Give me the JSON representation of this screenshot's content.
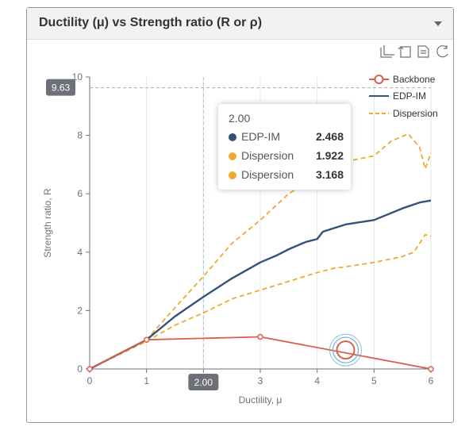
{
  "panel": {
    "title": "Ductility (μ) vs Strength ratio (R or ρ)"
  },
  "toolbox": [
    "crop-icon",
    "undo-icon",
    "data-view-icon",
    "restore-icon"
  ],
  "colors": {
    "backbone": "#d9604a",
    "edp_im": "#34527a",
    "dispersion": "#f0a830"
  },
  "pointer": {
    "x_label": "2.00",
    "y_label": "9.63"
  },
  "tooltip": {
    "title": "2.00",
    "rows": [
      {
        "name": "EDP-IM",
        "value": "2.468",
        "color": "#34527a"
      },
      {
        "name": "Dispersion",
        "value": "1.922",
        "color": "#f0a830"
      },
      {
        "name": "Dispersion",
        "value": "3.168",
        "color": "#f0a830"
      }
    ]
  },
  "chart_data": {
    "type": "line",
    "xlabel": "Ductility, μ",
    "ylabel": "Strength ratio, R",
    "xlim": [
      0,
      6
    ],
    "ylim": [
      0,
      10
    ],
    "x_ticks": [
      "0",
      "1",
      "2",
      "3",
      "4",
      "5",
      "6"
    ],
    "y_ticks": [
      "0",
      "2",
      "4",
      "6",
      "8",
      "10"
    ],
    "legend_position": "top-right",
    "legend": [
      "Backbone",
      "EDP-IM",
      "Dispersion"
    ],
    "series": [
      {
        "name": "Backbone",
        "style": "line-circle-markers",
        "points": [
          [
            0,
            0
          ],
          [
            1,
            1
          ],
          [
            3,
            1.1
          ],
          [
            6,
            0
          ]
        ]
      },
      {
        "name": "EDP-IM",
        "style": "solid",
        "points": [
          [
            0,
            0
          ],
          [
            1,
            1
          ],
          [
            1.5,
            1.8
          ],
          [
            2,
            2.47
          ],
          [
            2.5,
            3.1
          ],
          [
            3,
            3.65
          ],
          [
            3.3,
            3.9
          ],
          [
            3.5,
            4.1
          ],
          [
            3.8,
            4.35
          ],
          [
            4,
            4.45
          ],
          [
            4.1,
            4.7
          ],
          [
            4.5,
            4.95
          ],
          [
            5,
            5.1
          ],
          [
            5.5,
            5.5
          ],
          [
            5.8,
            5.7
          ],
          [
            6,
            5.77
          ]
        ]
      },
      {
        "name": "Dispersion",
        "style": "dashed",
        "points": [
          [
            0,
            0
          ],
          [
            1,
            1
          ],
          [
            1.5,
            2.1
          ],
          [
            2,
            3.17
          ],
          [
            2.5,
            4.3
          ],
          [
            3,
            5.1
          ],
          [
            3.5,
            6.0
          ],
          [
            4,
            6.6
          ],
          [
            4.5,
            7.1
          ],
          [
            5,
            7.3
          ],
          [
            5.3,
            7.8
          ],
          [
            5.6,
            8.05
          ],
          [
            5.8,
            7.6
          ],
          [
            5.9,
            6.85
          ],
          [
            6,
            7.4
          ]
        ]
      },
      {
        "name": "Dispersion",
        "style": "dashed",
        "points": [
          [
            0,
            0
          ],
          [
            1,
            0.95
          ],
          [
            1.5,
            1.5
          ],
          [
            2,
            1.92
          ],
          [
            2.5,
            2.4
          ],
          [
            3,
            2.7
          ],
          [
            3.5,
            3.0
          ],
          [
            4,
            3.3
          ],
          [
            4.3,
            3.45
          ],
          [
            4.5,
            3.5
          ],
          [
            5,
            3.65
          ],
          [
            5.5,
            3.85
          ],
          [
            5.7,
            4.0
          ],
          [
            5.9,
            4.6
          ],
          [
            6,
            4.55
          ]
        ]
      }
    ]
  }
}
